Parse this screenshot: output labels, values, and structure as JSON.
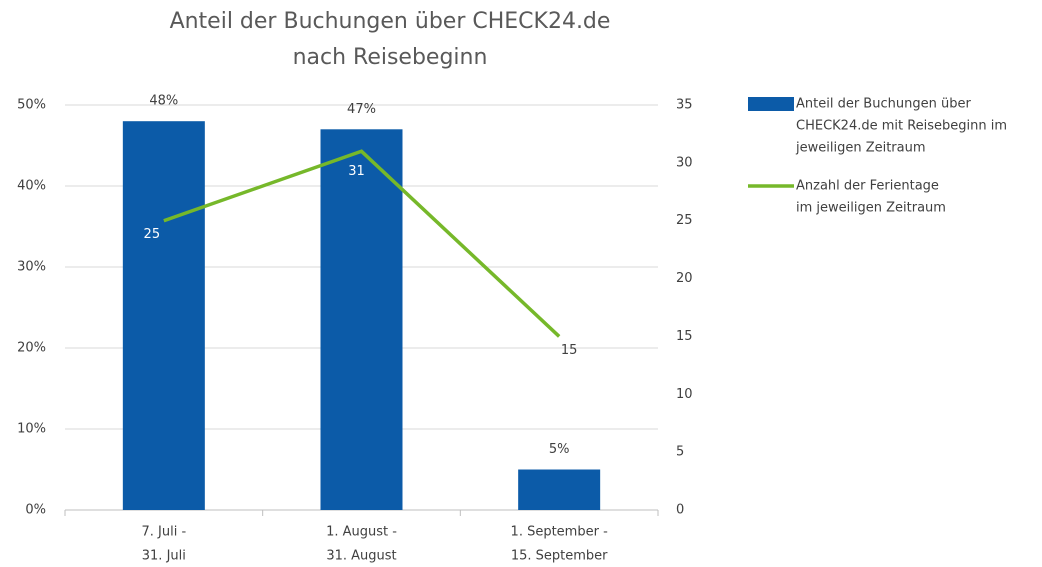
{
  "chart_data": {
    "type": "bar_line",
    "title": [
      "Anteil der Buchungen über CHECK24.de",
      "nach Reisebeginn"
    ],
    "categories": [
      [
        "7. Juli -",
        "31. Juli"
      ],
      [
        "1. August -",
        "31. August"
      ],
      [
        "1. September -",
        "15. September"
      ]
    ],
    "series": [
      {
        "name": [
          "Anteil der Buchungen über",
          "CHECK24.de mit Reisebeginn im",
          "jeweiligen Zeitraum"
        ],
        "type": "bar",
        "color": "#0c5ba8",
        "values": [
          48,
          47,
          5
        ],
        "value_labels": [
          "48%",
          "47%",
          "5%"
        ]
      },
      {
        "name": [
          "Anzahl der Ferientage",
          "im jeweiligen Zeitraum"
        ],
        "type": "line",
        "axis": "y2",
        "color": "#76b82a",
        "values": [
          25,
          31,
          15
        ]
      }
    ],
    "ylim": [
      0,
      50
    ],
    "yticks": [
      {
        "value": 0,
        "label": "0%"
      },
      {
        "value": 10,
        "label": "10%"
      },
      {
        "value": 20,
        "label": "20%"
      },
      {
        "value": 30,
        "label": "30%"
      },
      {
        "value": 40,
        "label": "40%"
      },
      {
        "value": 50,
        "label": "50%"
      }
    ],
    "y2lim": [
      0,
      35
    ],
    "y2ticks": [
      0,
      5,
      10,
      15,
      20,
      25,
      30,
      35
    ],
    "grid": true,
    "legend": "right"
  }
}
